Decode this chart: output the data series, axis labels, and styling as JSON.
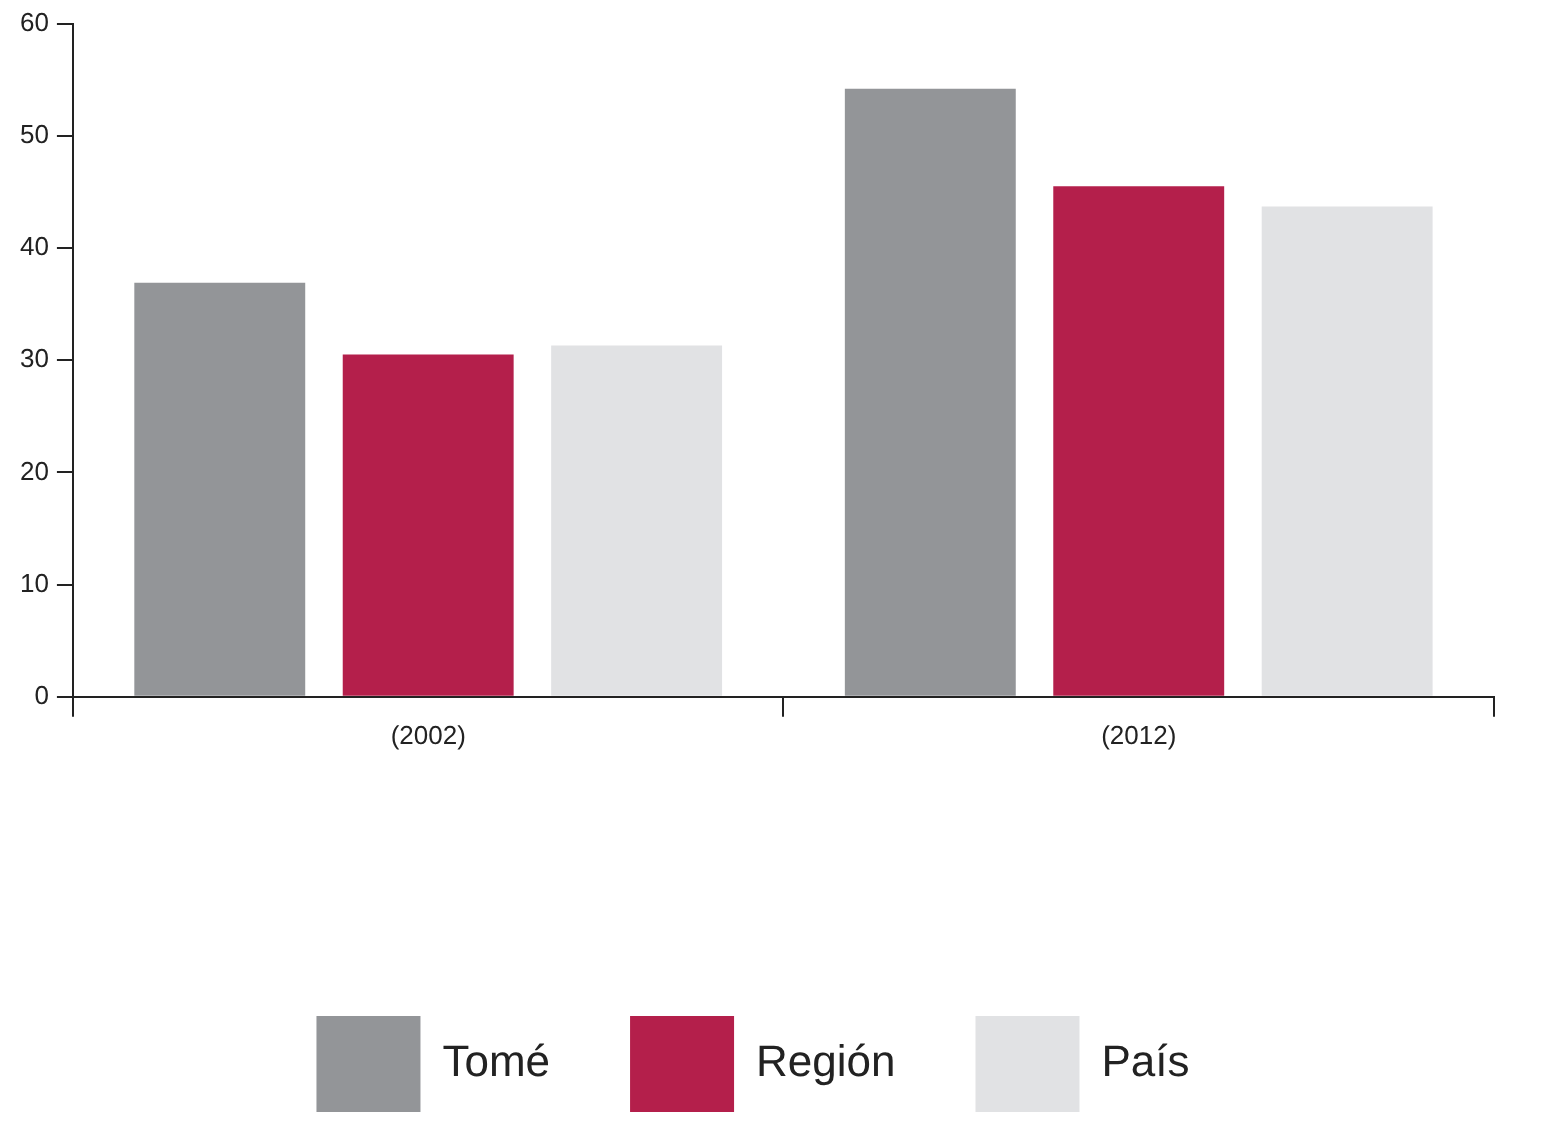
{
  "chart_data": {
    "type": "bar",
    "categories": [
      "(2002)",
      "(2012)"
    ],
    "series": [
      {
        "name": "Tomé",
        "color": "#939598",
        "values": [
          36.9,
          54.2
        ]
      },
      {
        "name": "Región",
        "color": "#b41f4b",
        "values": [
          30.5,
          45.5
        ]
      },
      {
        "name": "País",
        "color": "#e1e2e4",
        "values": [
          31.3,
          43.7
        ]
      }
    ],
    "ylim": [
      0,
      60
    ],
    "yticks": [
      0,
      10,
      20,
      30,
      40,
      50,
      60
    ],
    "grid": false,
    "legend": "bottom"
  }
}
